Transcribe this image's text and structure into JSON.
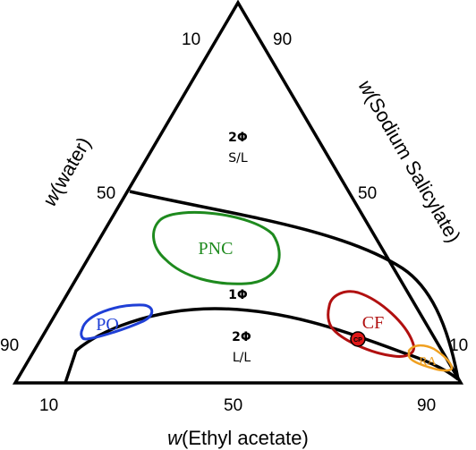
{
  "diagram": {
    "axes": {
      "water": {
        "prefix": "w",
        "name": "(water)"
      },
      "sodium_salicylate": {
        "prefix": "w",
        "name": "(Sodium Salicylate)"
      },
      "ethyl_acetate": {
        "prefix": "w",
        "name": "(Ethyl acetate)"
      }
    },
    "ticks": {
      "left": [
        "10",
        "50",
        "90"
      ],
      "right": [
        "90",
        "50",
        "10"
      ],
      "bottom": [
        "10",
        "50",
        "90"
      ]
    },
    "phases": {
      "upper": {
        "label": "2Φ",
        "sub": "S/L"
      },
      "middle": {
        "label": "1Φ"
      },
      "lower": {
        "label": "2Φ",
        "sub": "L/L"
      }
    },
    "regions": {
      "pnc": {
        "label": "PNC",
        "color": "#1e8a1e"
      },
      "po": {
        "label": "PO",
        "color": "#1f3fd6"
      },
      "cf": {
        "label": "CF",
        "color": "#b11010"
      },
      "ra": {
        "label": "RA",
        "color": "#f0a020"
      }
    },
    "critical_point": {
      "label": "CP",
      "color": "#e01818"
    }
  }
}
